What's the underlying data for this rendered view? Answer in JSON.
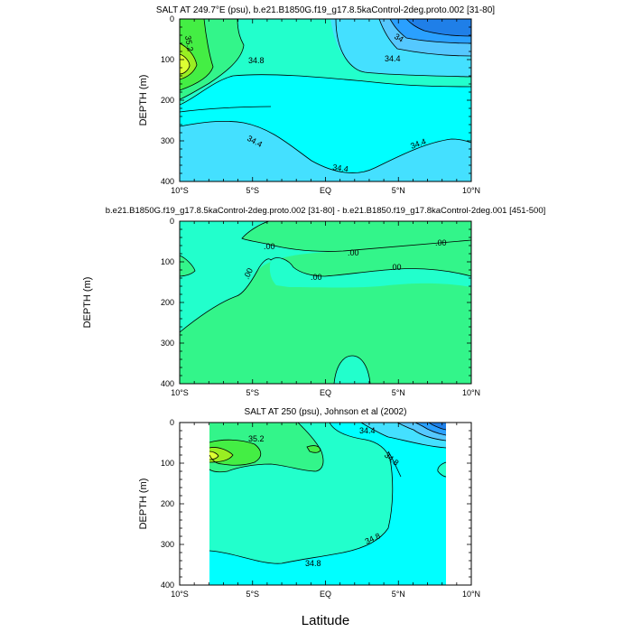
{
  "figure": {
    "x_title": "Latitude"
  },
  "colors": {
    "c33_8": "#1f7fe8",
    "c34_0": "#2aa0ff",
    "c34_2": "#55c8ff",
    "c34_4": "#44e0ff",
    "c34_6": "#00ffff",
    "c34_8": "#22ffcc",
    "c35_0": "#33f58a",
    "c35_2": "#44ee44",
    "c35_4": "#99ee22",
    "c35_6": "#ddff33",
    "d_neg": "#22ffcc",
    "d_pos": "#33f58a",
    "land": "#ffffff"
  },
  "chart_data": [
    {
      "type": "contour",
      "title": "SALT AT 249.7°E (psu), b.e21.B1850G.f19_g17.8.5kaControl-2deg.proto.002 [31-80]",
      "ylabel": "DEPTH (m)",
      "xlabel": "",
      "x_ticks": [
        "10°S",
        "5°S",
        "EQ",
        "5°N",
        "10°N"
      ],
      "x_values": [
        -10,
        -5,
        0,
        5,
        10
      ],
      "y_ticks": [
        "0",
        "100",
        "200",
        "300",
        "400"
      ],
      "y_values": [
        0,
        100,
        200,
        300,
        400
      ],
      "xlim": [
        -10,
        10
      ],
      "ylim": [
        400,
        0
      ],
      "contour_labels": [
        "35.2",
        "34.8",
        "34",
        "34.4",
        "34.4",
        "34.4",
        "34.4"
      ]
    },
    {
      "type": "contour",
      "title": "b.e21.B1850G.f19_g17.8.5kaControl-2deg.proto.002 [31-80] - b.e21.B1850.f19_g17.8kaControl-2deg.001 [451-500]",
      "ylabel": "DEPTH (m)",
      "xlabel": "",
      "x_ticks": [
        "10°S",
        "5°S",
        "EQ",
        "5°N",
        "10°N"
      ],
      "x_values": [
        -10,
        -5,
        0,
        5,
        10
      ],
      "y_ticks": [
        "0",
        "100",
        "200",
        "300",
        "400"
      ],
      "y_values": [
        0,
        100,
        200,
        300,
        400
      ],
      "xlim": [
        -10,
        10
      ],
      "ylim": [
        400,
        0
      ],
      "contour_labels": [
        ".00",
        ".00",
        ".00",
        ".00",
        ".00",
        ".00"
      ]
    },
    {
      "type": "contour",
      "title": "SALT AT 250 (psu), Johnson et al (2002)",
      "ylabel": "DEPTH (m)",
      "xlabel": "Latitude",
      "x_ticks": [
        "10°S",
        "5°S",
        "EQ",
        "5°N",
        "10°N"
      ],
      "x_values": [
        -10,
        -5,
        0,
        5,
        10
      ],
      "y_ticks": [
        "0",
        "100",
        "200",
        "300",
        "400"
      ],
      "y_values": [
        0,
        100,
        200,
        300,
        400
      ],
      "xlim": [
        -10,
        10
      ],
      "ylim": [
        400,
        0
      ],
      "data_xlim": [
        -8,
        8.2
      ],
      "contour_labels": [
        "35.2",
        "34.4",
        "34.8",
        "34.8",
        "34.8"
      ]
    }
  ]
}
